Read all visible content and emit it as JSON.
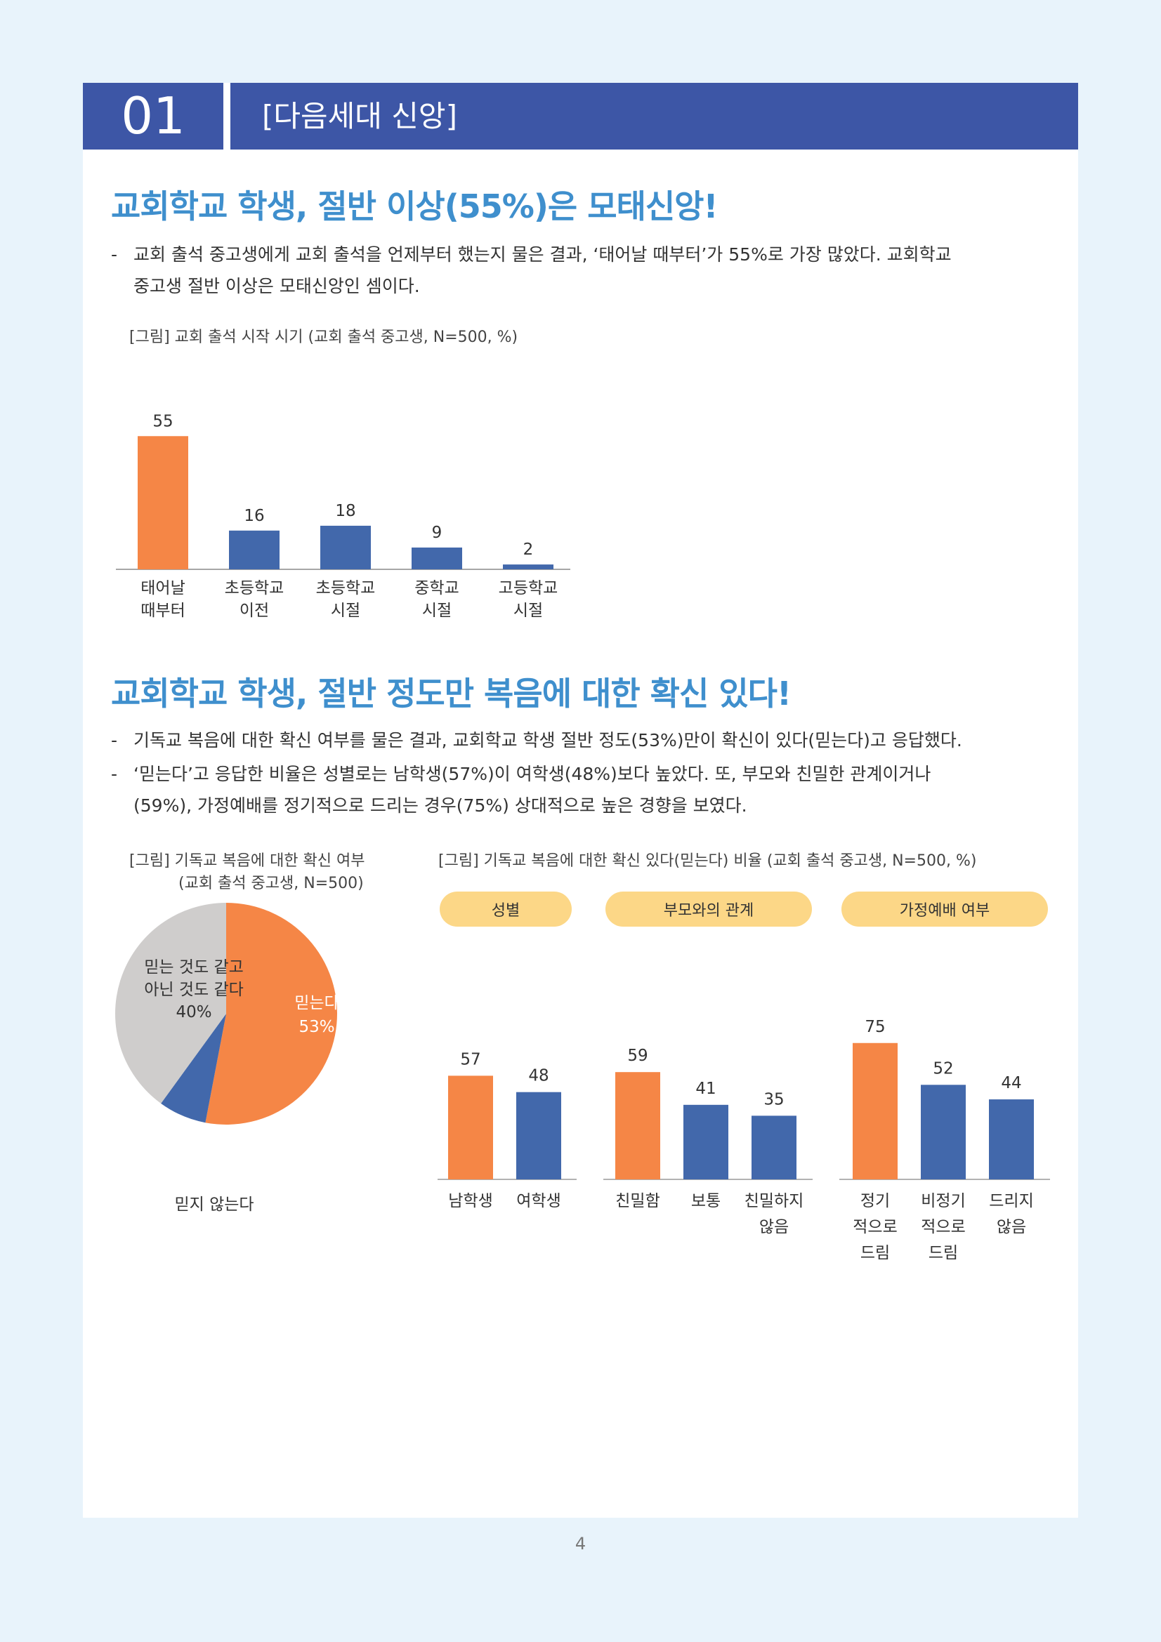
{
  "header": {
    "number": "01",
    "title": "[다음세대 신앙]"
  },
  "section1": {
    "heading": "교회학교 학생, 절반 이상(55%)은 모태신앙!",
    "bullets": [
      {
        "line1": "교회 출석 중고생에게 교회 출석을 언제부터 했는지 물은 결과, ‘태어날 때부터’가 55%로 가장 많았다. 교회학교",
        "line2": "중고생 절반 이상은 모태신앙인 셈이다."
      }
    ],
    "caption": "[그림] 교회 출석 시작 시기 (교회 출석 중고생, N=500, %)"
  },
  "section2": {
    "heading": "교회학교 학생, 절반 정도만 복음에 대한 확신 있다!",
    "bullets": [
      {
        "line1": "기독교 복음에 대한 확신 여부를 물은 결과, 교회학교 학생 절반 정도(53%)만이 확신이 있다(믿는다)고 응답했다.",
        "line2": ""
      },
      {
        "line1": "‘믿는다’고 응답한 비율은 성별로는 남학생(57%)이 여학생(48%)보다 높았다. 또, 부모와 친밀한 관계이거나",
        "line2": "(59%), 가정예배를 정기적으로 드리는 경우(75%) 상대적으로 높은 경향을 보였다."
      }
    ],
    "pie_caption_line1": "[그림] 기독교 복음에 대한 확신 여부",
    "pie_caption_line2": "(교회 출석 중고생, N=500)",
    "bars_caption": "[그림] 기독교 복음에 대한 확신 있다(믿는다) 비율 (교회 출석 중고생, N=500, %)"
  },
  "page_number": "4",
  "colors": {
    "header": "#3d56a6",
    "heading": "#3f8fcd",
    "orange": "#f58646",
    "blue": "#4268ab",
    "gray": "#cfcdcc",
    "pill": "#fcd787"
  },
  "chart_data": [
    {
      "type": "bar",
      "categories": [
        [
          "태어날",
          "때부터"
        ],
        [
          "초등학교",
          "이전"
        ],
        [
          "초등학교",
          "시절"
        ],
        [
          "중학교",
          "시절"
        ],
        [
          "고등학교",
          "시절"
        ]
      ],
      "values": [
        55,
        16,
        18,
        9,
        2
      ],
      "highlight_index": 0,
      "ylim": [
        0,
        60
      ]
    },
    {
      "type": "pie",
      "slices": [
        {
          "lines": [
            "믿는다"
          ],
          "pct": "53%",
          "value": 53,
          "color": "#f58646"
        },
        {
          "lines": [
            "믿지 않는다"
          ],
          "pct": "7%",
          "value": 7,
          "color": "#4268ab"
        },
        {
          "lines": [
            "믿는 것도 같고",
            "아닌 것도 같다"
          ],
          "pct": "40%",
          "value": 40,
          "color": "#cfcdcc"
        }
      ]
    },
    {
      "type": "bar",
      "groups": [
        {
          "name": "성별",
          "categories": [
            [
              "남학생"
            ],
            [
              "여학생"
            ]
          ],
          "values": [
            57,
            48
          ]
        },
        {
          "name": "부모와의 관계",
          "categories": [
            [
              "친밀함"
            ],
            [
              "보통"
            ],
            [
              "친밀하지",
              "않음"
            ]
          ],
          "values": [
            59,
            41,
            35
          ]
        },
        {
          "name": "가정예배 여부",
          "categories": [
            [
              "정기",
              "적으로",
              "드림"
            ],
            [
              "비정기",
              "적으로",
              "드림"
            ],
            [
              "드리지",
              "않음"
            ]
          ],
          "values": [
            75,
            52,
            44
          ]
        }
      ],
      "ylim": [
        0,
        80
      ]
    }
  ]
}
